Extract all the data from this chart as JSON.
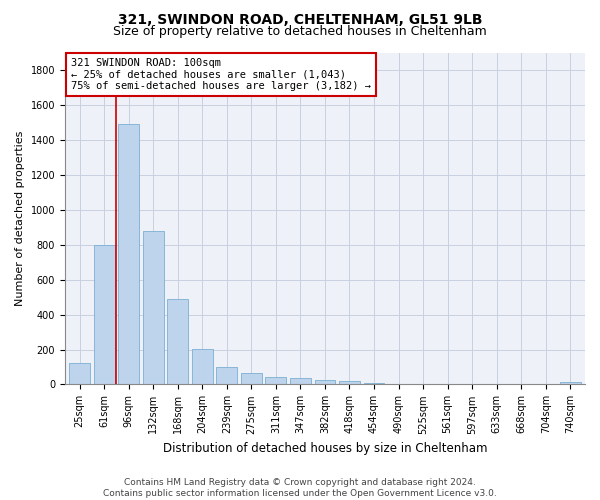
{
  "title1": "321, SWINDON ROAD, CHELTENHAM, GL51 9LB",
  "title2": "Size of property relative to detached houses in Cheltenham",
  "xlabel": "Distribution of detached houses by size in Cheltenham",
  "ylabel": "Number of detached properties",
  "footnote": "Contains HM Land Registry data © Crown copyright and database right 2024.\nContains public sector information licensed under the Open Government Licence v3.0.",
  "categories": [
    "25sqm",
    "61sqm",
    "96sqm",
    "132sqm",
    "168sqm",
    "204sqm",
    "239sqm",
    "275sqm",
    "311sqm",
    "347sqm",
    "382sqm",
    "418sqm",
    "454sqm",
    "490sqm",
    "525sqm",
    "561sqm",
    "597sqm",
    "633sqm",
    "668sqm",
    "704sqm",
    "740sqm"
  ],
  "values": [
    120,
    800,
    1490,
    880,
    490,
    205,
    100,
    65,
    42,
    35,
    25,
    20,
    10,
    0,
    0,
    0,
    0,
    0,
    0,
    0,
    12
  ],
  "bar_color": "#bed3ec",
  "bar_edgecolor": "#7aafd4",
  "vline_x": 1.5,
  "vline_color": "#cc0000",
  "annotation_text": "321 SWINDON ROAD: 100sqm\n← 25% of detached houses are smaller (1,043)\n75% of semi-detached houses are larger (3,182) →",
  "annotation_box_color": "white",
  "annotation_box_edgecolor": "#cc0000",
  "ylim": [
    0,
    1900
  ],
  "yticks": [
    0,
    200,
    400,
    600,
    800,
    1000,
    1200,
    1400,
    1600,
    1800
  ],
  "grid_color": "#c8cfe0",
  "bg_color": "#eef1f8",
  "title1_fontsize": 10,
  "title2_fontsize": 9,
  "xlabel_fontsize": 8.5,
  "ylabel_fontsize": 8,
  "tick_fontsize": 7,
  "footnote_fontsize": 6.5
}
